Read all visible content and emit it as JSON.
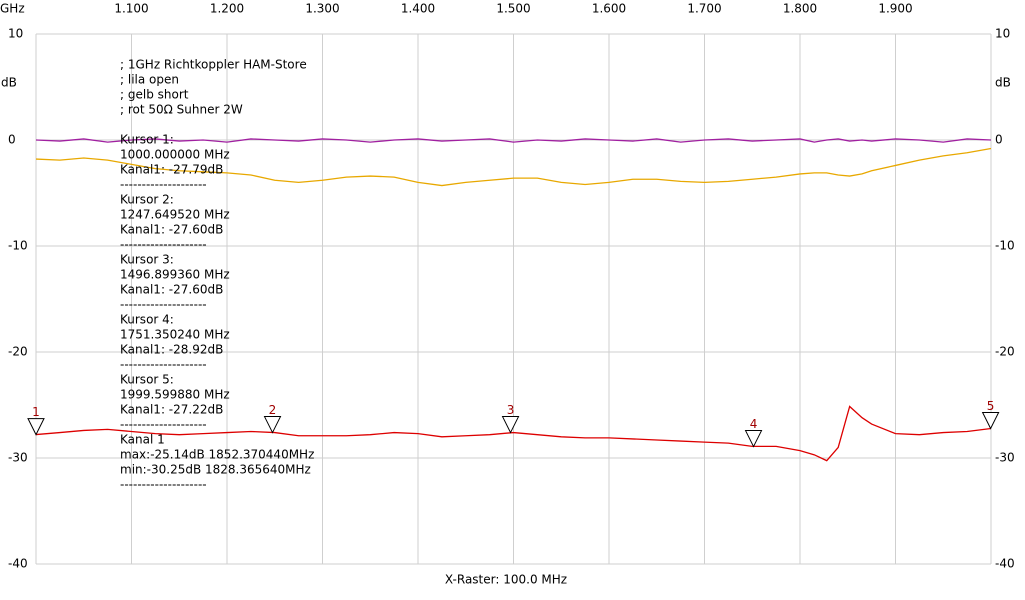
{
  "chart_data": {
    "type": "line",
    "x_unit_label": "GHz",
    "y_unit_label": "dB",
    "xlabel": "X-Raster: 100.0 MHz",
    "notes": [
      "; 1GHz Richtkoppler HAM-Store",
      "; lila open",
      "; gelb short",
      "; rot 50Ω Suhner 2W"
    ],
    "cursor_text": [
      "Kursor 1:",
      "1000.000000 MHz",
      "Kanal1: -27.79dB",
      "--------------------",
      "Kursor 2:",
      "1247.649520 MHz",
      "Kanal1: -27.60dB",
      "--------------------",
      "Kursor 3:",
      "1496.899360 MHz",
      "Kanal1: -27.60dB",
      "--------------------",
      "Kursor 4:",
      "1751.350240 MHz",
      "Kanal1: -28.92dB",
      "--------------------",
      "Kursor 5:",
      "1999.599880 MHz",
      "Kanal1: -27.22dB",
      "--------------------",
      "Kanal 1",
      "max:-25.14dB 1852.370440MHz",
      "min:-30.25dB 1828.365640MHz",
      "--------------------"
    ],
    "xlim": [
      1.0,
      2.0
    ],
    "xticks": [
      {
        "value": 1.1,
        "label": "1.100"
      },
      {
        "value": 1.2,
        "label": "1.200"
      },
      {
        "value": 1.3,
        "label": "1.300"
      },
      {
        "value": 1.4,
        "label": "1.400"
      },
      {
        "value": 1.5,
        "label": "1.500"
      },
      {
        "value": 1.6,
        "label": "1.600"
      },
      {
        "value": 1.7,
        "label": "1.700"
      },
      {
        "value": 1.8,
        "label": "1.800"
      },
      {
        "value": 1.9,
        "label": "1.900"
      }
    ],
    "ylim": [
      -40,
      10
    ],
    "yticks": [
      10,
      0,
      -10,
      -20,
      -30,
      -40
    ],
    "grid": true,
    "x": [
      1.0,
      1.025,
      1.05,
      1.075,
      1.1,
      1.125,
      1.15,
      1.175,
      1.2,
      1.225,
      1.25,
      1.275,
      1.3,
      1.325,
      1.35,
      1.375,
      1.4,
      1.425,
      1.45,
      1.475,
      1.5,
      1.525,
      1.55,
      1.575,
      1.6,
      1.625,
      1.65,
      1.675,
      1.7,
      1.725,
      1.75,
      1.775,
      1.8,
      1.815,
      1.828,
      1.84,
      1.852,
      1.865,
      1.875,
      1.9,
      1.925,
      1.95,
      1.975,
      2.0
    ],
    "series": [
      {
        "name": "lila open",
        "color": "#a020a0",
        "values": [
          0,
          -0.1,
          0.1,
          -0.2,
          0,
          0.1,
          -0.1,
          0,
          -0.2,
          0.1,
          0,
          -0.1,
          0.1,
          0,
          -0.2,
          0,
          0.1,
          -0.1,
          0,
          0.1,
          -0.2,
          0,
          -0.1,
          0.1,
          0,
          -0.1,
          0.1,
          -0.2,
          0,
          0.1,
          -0.1,
          0,
          0.1,
          -0.2,
          0,
          0.1,
          -0.1,
          0,
          -0.1,
          0.1,
          0,
          -0.2,
          0.1,
          0
        ]
      },
      {
        "name": "gelb short",
        "color": "#e8a800",
        "values": [
          -1.8,
          -1.9,
          -1.7,
          -1.9,
          -2.3,
          -2.7,
          -2.9,
          -3.0,
          -3.1,
          -3.3,
          -3.8,
          -4.0,
          -3.8,
          -3.5,
          -3.4,
          -3.5,
          -4.0,
          -4.3,
          -4.0,
          -3.8,
          -3.6,
          -3.6,
          -4.0,
          -4.2,
          -4.0,
          -3.7,
          -3.7,
          -3.9,
          -4.0,
          -3.9,
          -3.7,
          -3.5,
          -3.2,
          -3.1,
          -3.1,
          -3.3,
          -3.4,
          -3.2,
          -2.9,
          -2.4,
          -1.9,
          -1.5,
          -1.2,
          -0.8
        ]
      },
      {
        "name": "rot 50Ω Suhner 2W",
        "color": "#dd0000",
        "values": [
          -27.79,
          -27.6,
          -27.4,
          -27.3,
          -27.5,
          -27.7,
          -27.8,
          -27.7,
          -27.6,
          -27.5,
          -27.6,
          -27.9,
          -27.9,
          -27.9,
          -27.8,
          -27.6,
          -27.7,
          -28.0,
          -27.9,
          -27.8,
          -27.6,
          -27.8,
          -28.0,
          -28.1,
          -28.1,
          -28.2,
          -28.3,
          -28.4,
          -28.5,
          -28.6,
          -28.9,
          -28.9,
          -29.3,
          -29.7,
          -30.25,
          -29.0,
          -25.14,
          -26.2,
          -26.8,
          -27.7,
          -27.8,
          -27.6,
          -27.5,
          -27.22
        ]
      }
    ],
    "cursors": [
      {
        "label": "1",
        "x": 1.0,
        "y": -27.79
      },
      {
        "label": "2",
        "x": 1.24765,
        "y": -27.6
      },
      {
        "label": "3",
        "x": 1.4969,
        "y": -27.6
      },
      {
        "label": "4",
        "x": 1.75135,
        "y": -28.92
      },
      {
        "label": "5",
        "x": 1.9996,
        "y": -27.22
      }
    ]
  }
}
